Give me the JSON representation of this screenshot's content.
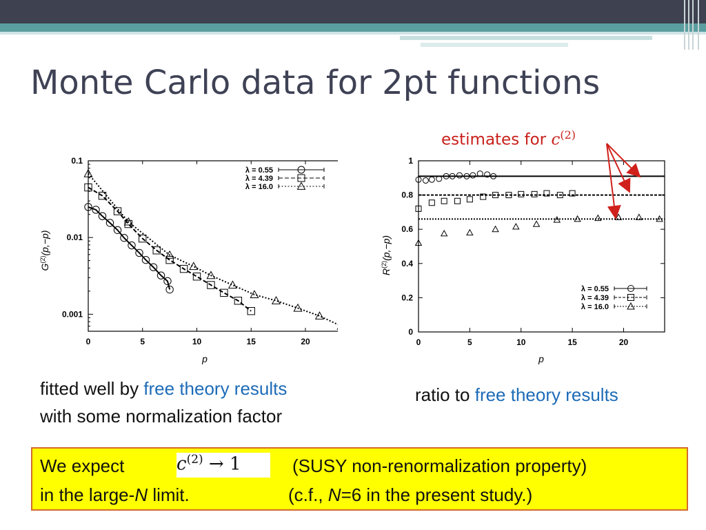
{
  "slide": {
    "title": "Monte Carlo data for 2pt functions",
    "annotation": {
      "text": "estimates for ",
      "symbol": "c",
      "superscript": "(2)",
      "arrow_color": "#d0201b"
    },
    "left_caption": {
      "line1_prefix": "fitted well by ",
      "line1_highlight": "free theory results",
      "line2": "with some normalization factor"
    },
    "right_caption": {
      "prefix": "ratio to ",
      "highlight": "free theory results"
    },
    "box": {
      "line1_prefix": "We expect",
      "formula_base": "c",
      "formula_sup": "(2)",
      "formula_tail": " → 1",
      "line1_suffix": "(SUSY non-renormalization property)",
      "line2_prefix": "in the large-",
      "line2_N": "N",
      "line2_mid": " limit.",
      "line2_cf": "(c.f., ",
      "line2_N2": "N",
      "line2_end": "=6  in the present study.)"
    },
    "colors": {
      "title": "#3f4255",
      "highlight": "#1d6bb8",
      "annotation": "#c8211c",
      "box_fill": "#ffff00",
      "box_border": "#d46a2a"
    }
  },
  "chart_data": [
    {
      "type": "scatter",
      "scale": "log-y",
      "xlabel": "p",
      "ylabel": "G(2)(p,-p)",
      "xlim": [
        0,
        24
      ],
      "ylim": [
        0.0006,
        0.1
      ],
      "xticks": [
        "0",
        "5",
        "10",
        "15",
        "20"
      ],
      "yticks": [
        "0.001",
        "0.01",
        "0.1"
      ],
      "legend_position": "top-right",
      "series": [
        {
          "name": "λ = 0.55",
          "marker": "circle",
          "line": "solid",
          "x": [
            0,
            0.7,
            1.3,
            2,
            2.7,
            3.3,
            4,
            4.7,
            5.3,
            6,
            6.7,
            7.3,
            7.5
          ],
          "y": [
            0.025,
            0.023,
            0.019,
            0.0155,
            0.0125,
            0.0099,
            0.0079,
            0.0063,
            0.0051,
            0.0041,
            0.0032,
            0.0027,
            0.0021
          ]
        },
        {
          "name": "λ = 4.39",
          "marker": "square",
          "line": "dashed",
          "x": [
            0,
            1.3,
            2.7,
            3.7,
            5,
            6.3,
            7.5,
            8.8,
            10,
            11.3,
            12.5,
            13.8,
            15
          ],
          "y": [
            0.045,
            0.035,
            0.022,
            0.015,
            0.0097,
            0.0068,
            0.0051,
            0.0039,
            0.0031,
            0.0024,
            0.0019,
            0.0015,
            0.0011
          ]
        },
        {
          "name": "λ = 16.0",
          "marker": "triangle",
          "line": "dotted",
          "x": [
            0,
            3.7,
            7.5,
            9.7,
            11.3,
            13.3,
            15.3,
            17.3,
            19.3,
            21.3,
            23.3
          ],
          "y": [
            0.068,
            0.016,
            0.0059,
            0.0042,
            0.0032,
            0.0024,
            0.0018,
            0.0015,
            0.0012,
            0.00095,
            0.0007
          ]
        }
      ]
    },
    {
      "type": "scatter",
      "xlabel": "p",
      "ylabel": "R(2)(p,-p)",
      "xlim": [
        0,
        24
      ],
      "ylim": [
        0,
        1
      ],
      "xticks": [
        "0",
        "5",
        "10",
        "15",
        "20"
      ],
      "yticks": [
        "0",
        "0.2",
        "0.4",
        "0.6",
        "0.8",
        "1"
      ],
      "legend_position": "bottom-right",
      "hlines": [
        0.91,
        0.8,
        0.66
      ],
      "series": [
        {
          "name": "λ = 0.55",
          "marker": "circle",
          "x": [
            0,
            0.7,
            1.3,
            2,
            2.7,
            3.3,
            4,
            4.7,
            5.3,
            6,
            6.7,
            7.3
          ],
          "y": [
            0.89,
            0.885,
            0.89,
            0.895,
            0.91,
            0.91,
            0.915,
            0.91,
            0.915,
            0.925,
            0.92,
            0.91
          ]
        },
        {
          "name": "λ = 4.39",
          "marker": "square",
          "x": [
            0,
            1.3,
            2.5,
            3.8,
            5,
            6.3,
            7.5,
            8.8,
            10,
            11.3,
            12.5,
            13.8,
            15
          ],
          "y": [
            0.72,
            0.755,
            0.765,
            0.765,
            0.775,
            0.79,
            0.8,
            0.8,
            0.805,
            0.805,
            0.81,
            0.8,
            0.81
          ]
        },
        {
          "name": "λ = 16.0",
          "marker": "triangle",
          "x": [
            0,
            2.5,
            5,
            7.5,
            9.5,
            11.5,
            13.5,
            15.5,
            17.5,
            19.5,
            21.5,
            23.5
          ],
          "y": [
            0.52,
            0.575,
            0.58,
            0.6,
            0.615,
            0.63,
            0.655,
            0.66,
            0.665,
            0.67,
            0.67,
            0.66
          ]
        }
      ]
    }
  ]
}
